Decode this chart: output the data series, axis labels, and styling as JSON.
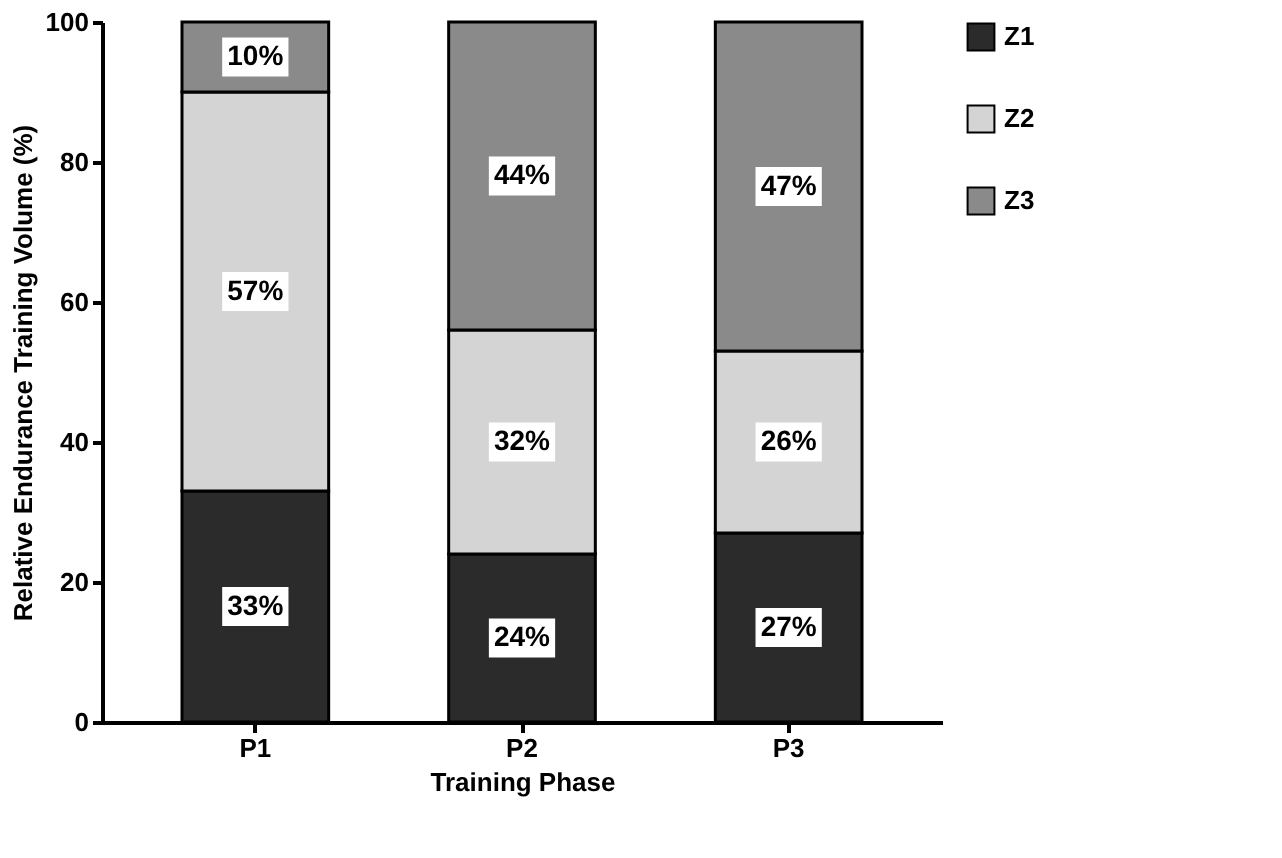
{
  "chart_data": {
    "type": "bar",
    "stacked": true,
    "xlabel": "Training Phase",
    "ylabel": "Relative Endurance Training  Volume (%)",
    "categories": [
      "P1",
      "P2",
      "P3"
    ],
    "series": [
      {
        "name": "Z1",
        "color": "#2b2b2b",
        "values": [
          33,
          24,
          27
        ],
        "value_labels": [
          "33%",
          "24%",
          "27%"
        ]
      },
      {
        "name": "Z2",
        "color": "#d4d4d4",
        "values": [
          57,
          32,
          26
        ],
        "value_labels": [
          "57%",
          "32%",
          "26%"
        ]
      },
      {
        "name": "Z3",
        "color": "#8a8a8a",
        "values": [
          10,
          44,
          47
        ],
        "value_labels": [
          "10%",
          "44%",
          "47%"
        ]
      }
    ],
    "ylim": [
      0,
      100
    ],
    "yticks": [
      0,
      20,
      40,
      60,
      80,
      100
    ],
    "grid": false,
    "legend": "top right"
  }
}
